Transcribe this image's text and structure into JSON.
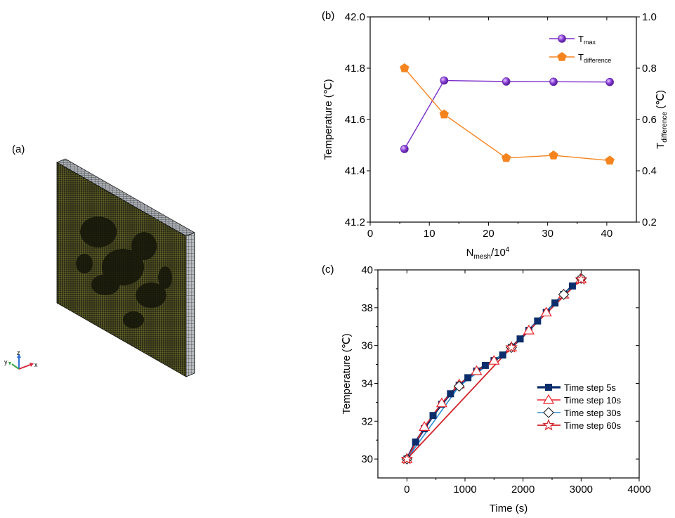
{
  "panels": {
    "a": "(a)",
    "b": "(b)",
    "c": "(c)"
  },
  "triad": {
    "z": "z",
    "y": "y",
    "x": "x"
  },
  "chart_data": [
    {
      "type": "line",
      "xlabel_main": "N",
      "xlabel_sub": "mesh",
      "xlabel_tail": "/10",
      "xlabel_sup": "4",
      "ylabel": "Temperature (℃)",
      "y2label_main": "T",
      "y2label_sub": "difference",
      "y2label_tail": " (℃)",
      "xlim": [
        0,
        45
      ],
      "ylim": [
        41.2,
        42.0
      ],
      "y2lim": [
        0.2,
        1.0
      ],
      "xticks": [
        "0",
        "10",
        "20",
        "30",
        "40"
      ],
      "yticks": [
        "41.2",
        "41.4",
        "41.6",
        "41.8",
        "42.0"
      ],
      "y2ticks": [
        "0.2",
        "0.4",
        "0.6",
        "0.8",
        "1.0"
      ],
      "legend_position": "top-right",
      "series": [
        {
          "legend_main": "T",
          "legend_sub": "max",
          "axis": "left",
          "marker": "sphere",
          "color": "#7b2fc9",
          "x": [
            5.8,
            12.5,
            23.0,
            31.0,
            40.5
          ],
          "y": [
            41.485,
            41.752,
            41.748,
            41.747,
            41.746
          ]
        },
        {
          "legend_main": "T",
          "legend_sub": "difference",
          "axis": "right",
          "marker": "pentagon",
          "color": "#f5841f",
          "x": [
            5.8,
            12.5,
            23.0,
            31.0,
            40.5
          ],
          "y": [
            0.8,
            0.62,
            0.45,
            0.46,
            0.44
          ]
        }
      ]
    },
    {
      "type": "line",
      "xlabel": "Time (s)",
      "ylabel": "Temperature (℃)",
      "xlim": [
        -500,
        4000
      ],
      "ylim": [
        29,
        40
      ],
      "xticks": [
        "0",
        "1000",
        "2000",
        "3000",
        "4000"
      ],
      "yticks": [
        "30",
        "32",
        "34",
        "36",
        "38",
        "40"
      ],
      "legend_position": "bottom-right",
      "series": [
        {
          "name": "Time step 5s",
          "color": "#0b2d6b",
          "marker": "square",
          "x": [
            0,
            150,
            300,
            450,
            600,
            750,
            900,
            1050,
            1200,
            1350,
            1500,
            1650,
            1800,
            1950,
            2100,
            2250,
            2400,
            2550,
            2700,
            2850,
            3000
          ],
          "y": [
            30.0,
            30.9,
            31.6,
            32.3,
            32.9,
            33.45,
            33.9,
            34.3,
            34.65,
            34.95,
            35.2,
            35.5,
            35.9,
            36.35,
            36.8,
            37.3,
            37.75,
            38.25,
            38.7,
            39.15,
            39.5
          ]
        },
        {
          "name": "Time step 10s",
          "color": "#e8242b",
          "marker": "triangle",
          "x": [
            0,
            300,
            600,
            900,
            1200,
            1500,
            1800,
            2100,
            2400,
            2700,
            3000
          ],
          "y": [
            30.0,
            31.7,
            32.95,
            33.95,
            34.65,
            35.2,
            35.9,
            36.8,
            37.75,
            38.7,
            39.5
          ]
        },
        {
          "name": "Time step 30s",
          "color": "#2b8fd6",
          "marker": "diamond",
          "x": [
            0,
            900,
            1800,
            2700,
            3000
          ],
          "y": [
            30.0,
            33.85,
            35.9,
            38.7,
            39.55
          ]
        },
        {
          "name": "Time step 60s",
          "color": "#d1232a",
          "marker": "star",
          "x": [
            0,
            1800,
            3000
          ],
          "y": [
            30.0,
            35.9,
            39.5
          ]
        }
      ]
    }
  ]
}
